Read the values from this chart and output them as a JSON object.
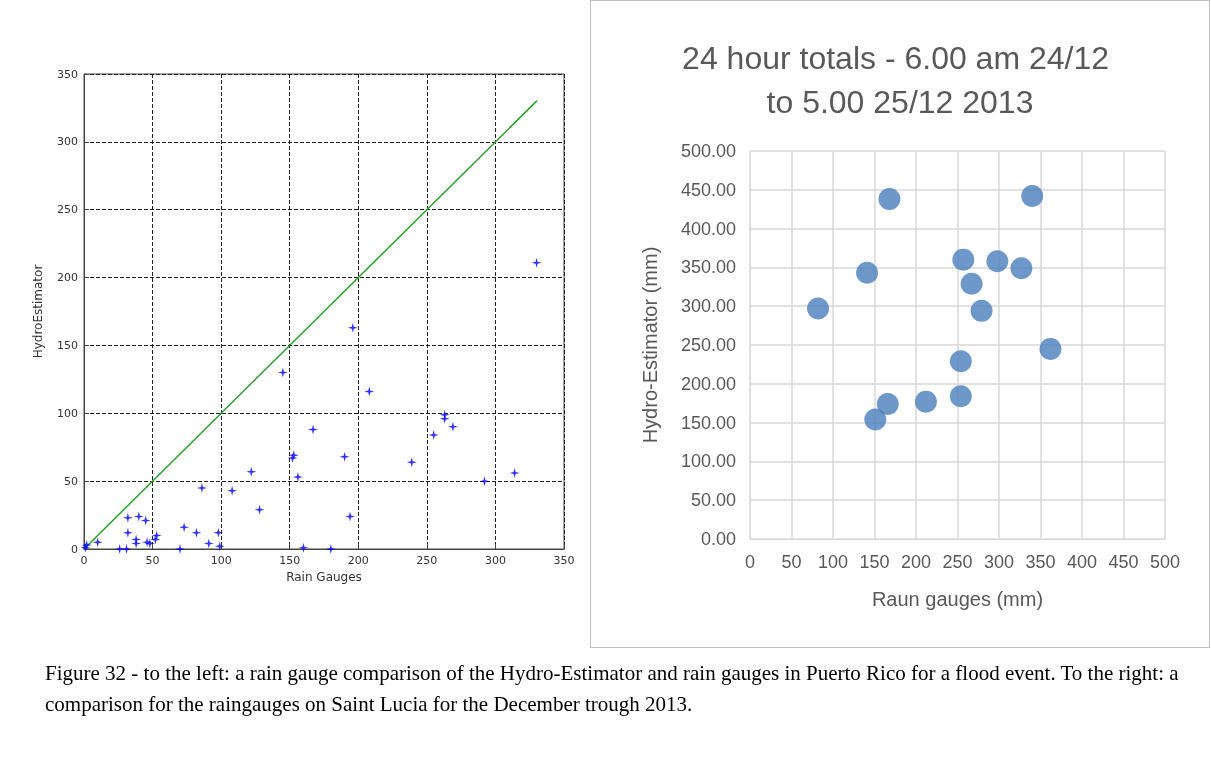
{
  "chart_data": [
    {
      "type": "scatter",
      "xlabel": "Rain Gauges",
      "ylabel": "HydroEstimator",
      "xlim": [
        0,
        350
      ],
      "xticks": [
        0,
        50,
        100,
        150,
        200,
        250,
        300,
        350
      ],
      "ylim": [
        0,
        350
      ],
      "yticks": [
        0,
        50,
        100,
        150,
        200,
        250,
        300,
        350
      ],
      "grid": true,
      "marker": "star",
      "series": [
        {
          "color": "#0000ff",
          "x": [
            1,
            2,
            10,
            26,
            31,
            32,
            32,
            38,
            40,
            38,
            45,
            46,
            48,
            52,
            53,
            70,
            73,
            82,
            86,
            91,
            98,
            99,
            108,
            122,
            128,
            145,
            152,
            153,
            156,
            160,
            167,
            180,
            196,
            208,
            190,
            194,
            239,
            255,
            263,
            263,
            269,
            292,
            314,
            330
          ],
          "values": [
            1,
            3,
            5,
            0,
            0,
            12,
            23,
            7,
            24,
            4,
            21,
            5,
            4,
            7,
            10,
            0,
            16,
            12,
            45,
            4,
            12,
            2,
            43,
            57,
            29,
            130,
            67,
            69,
            53,
            1,
            88,
            0,
            163,
            116,
            68,
            24,
            64,
            84,
            99,
            96,
            90,
            50,
            56,
            211
          ]
        },
        {
          "type": "line",
          "color": "#2ca02c",
          "marker": "none",
          "line_style": "solid",
          "x": [
            0,
            330
          ],
          "values": [
            0,
            330
          ]
        }
      ]
    },
    {
      "type": "scatter",
      "title": "24 hour totals - 6.00 am 24/12 to 5.00 25/12 2013",
      "xlabel": "Raun gauges (mm)",
      "ylabel": "Hydro-Estimator (mm)",
      "xlim": [
        0,
        500
      ],
      "xticks": [
        0,
        50,
        100,
        150,
        200,
        250,
        300,
        350,
        400,
        450,
        500
      ],
      "ylim": [
        0,
        500
      ],
      "yticks": [
        {
          "value": 0,
          "label": "0.00"
        },
        {
          "value": 50,
          "label": "50.00"
        },
        {
          "value": 100,
          "label": "100.00"
        },
        {
          "value": 150,
          "label": "150.00"
        },
        {
          "value": 200,
          "label": "200.00"
        },
        {
          "value": 250,
          "label": "250.00"
        },
        {
          "value": 300,
          "label": "300.00"
        },
        {
          "value": 350,
          "label": "350.00"
        },
        {
          "value": 400,
          "label": "400.00"
        },
        {
          "value": 450,
          "label": "450.00"
        },
        {
          "value": 500,
          "label": "500.00"
        }
      ],
      "grid": true,
      "marker": "circle",
      "series": [
        {
          "color": "#4a7ebb",
          "x": [
            168,
            340,
            257,
            298,
            327,
            141,
            267,
            82,
            279,
            362,
            254,
            166,
            212,
            254,
            151
          ],
          "values": [
            438,
            442,
            360,
            358,
            349,
            343,
            329,
            297,
            294,
            245,
            229,
            174,
            177,
            184,
            154
          ]
        }
      ]
    },
    {
      "type": "other",
      "annotations": [
        "Figure 32 - to the left: a rain gauge comparison of the Hydro-Estimator and rain gauges in Puerto Rico for a flood event. To the right: a comparison for the raingauges on Saint Lucia for the December trough 2013."
      ]
    }
  ]
}
